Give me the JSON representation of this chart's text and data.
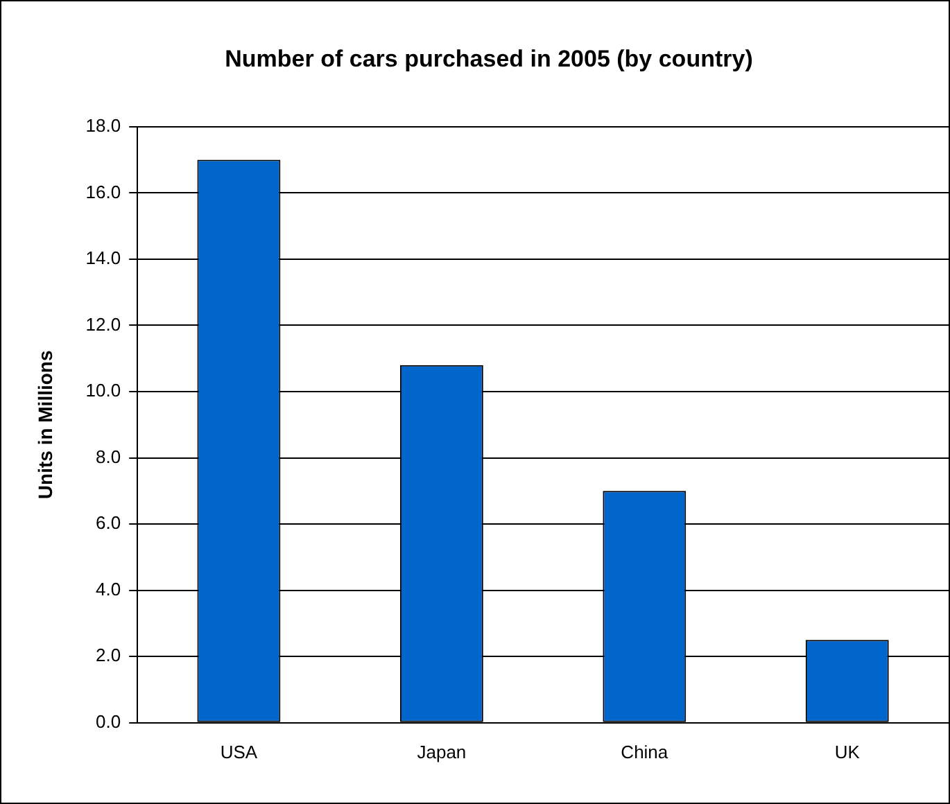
{
  "chart_data": {
    "type": "bar",
    "title": "Number of cars purchased in 2005 (by country)",
    "ylabel": "Units in Millions",
    "categories": [
      "USA",
      "Japan",
      "China",
      "UK"
    ],
    "values": [
      17.0,
      10.8,
      7.0,
      2.5
    ],
    "color": "#0066cc",
    "ylim": [
      0,
      18
    ],
    "yticks": [
      {
        "value": 0,
        "label": "0.0"
      },
      {
        "value": 2,
        "label": "2.0"
      },
      {
        "value": 4,
        "label": "4.0"
      },
      {
        "value": 6,
        "label": "6.0"
      },
      {
        "value": 8,
        "label": "8.0"
      },
      {
        "value": 10,
        "label": "10.0"
      },
      {
        "value": 12,
        "label": "12.0"
      },
      {
        "value": 14,
        "label": "14.0"
      },
      {
        "value": 16,
        "label": "16.0"
      },
      {
        "value": 18,
        "label": "18.0"
      }
    ],
    "grid": "y",
    "legend": false
  }
}
